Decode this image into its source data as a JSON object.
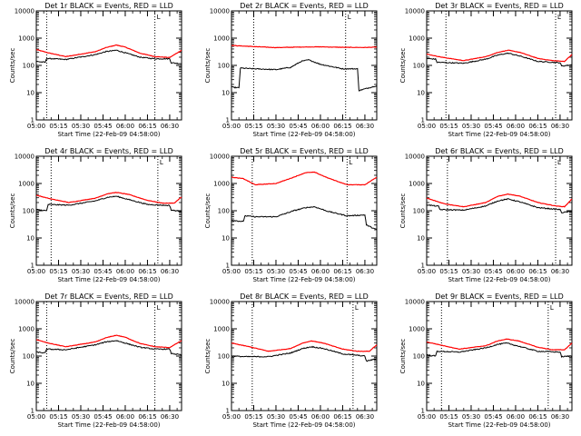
{
  "chart_data": [
    {
      "type": "line",
      "title": "Det 1r BLACK = Events, RED = LLD",
      "xlabel": "Start Time (22-Feb-09 04:58:00)",
      "ylabel": "Counts/sec",
      "yscale": "log",
      "ylim": [
        1,
        10000
      ],
      "xlim": [
        "05:00",
        "06:38"
      ],
      "x_ticks": [
        "05:00",
        "05:15",
        "05:30",
        "05:45",
        "06:00",
        "06:15",
        "06:30"
      ],
      "y_ticks": [
        "1",
        "10",
        "100",
        "1000",
        "10000"
      ],
      "vlines_dotted": [
        "05:07",
        "06:20"
      ],
      "marker": "L",
      "series": [
        {
          "color": "#ff0000",
          "x": [
            "05:00",
            "05:08",
            "05:20",
            "05:40",
            "05:47",
            "05:54",
            "06:00",
            "06:10",
            "06:20",
            "06:30",
            "06:38"
          ],
          "values": [
            380,
            290,
            210,
            320,
            450,
            560,
            470,
            280,
            210,
            195,
            360
          ]
        },
        {
          "color": "#000000",
          "x": [
            "05:00",
            "05:06",
            "05:07",
            "05:20",
            "05:40",
            "05:47",
            "05:54",
            "06:00",
            "06:10",
            "06:20",
            "06:30",
            "06:31",
            "06:38"
          ],
          "values": [
            140,
            130,
            180,
            165,
            250,
            320,
            360,
            290,
            200,
            175,
            175,
            125,
            115
          ]
        }
      ]
    },
    {
      "type": "line",
      "title": "Det 2r BLACK = Events, RED = LLD",
      "xlabel": "Start Time (22-Feb-09 04:58:00)",
      "ylabel": "Counts/sec",
      "yscale": "log",
      "ylim": [
        1,
        10000
      ],
      "xlim": [
        "05:00",
        "06:38"
      ],
      "x_ticks": [
        "05:00",
        "05:15",
        "05:30",
        "05:45",
        "06:00",
        "06:15",
        "06:30"
      ],
      "y_ticks": [
        "1",
        "10",
        "100",
        "1000",
        "10000"
      ],
      "vlines_dotted": [
        "05:15",
        "06:17"
      ],
      "marker": "L",
      "series": [
        {
          "color": "#ff0000",
          "x": [
            "05:00",
            "05:15",
            "05:30",
            "05:45",
            "06:00",
            "06:15",
            "06:30",
            "06:38"
          ],
          "values": [
            540,
            490,
            450,
            470,
            480,
            460,
            455,
            470
          ]
        },
        {
          "color": "#000000",
          "x": [
            "05:00",
            "05:05",
            "05:06",
            "05:15",
            "05:30",
            "05:40",
            "05:47",
            "05:52",
            "06:00",
            "06:15",
            "06:25",
            "06:26",
            "06:38"
          ],
          "values": [
            16,
            15,
            80,
            75,
            70,
            85,
            140,
            160,
            110,
            75,
            75,
            12,
            18
          ]
        }
      ]
    },
    {
      "type": "line",
      "title": "Det 3r BLACK = Events, RED = LLD",
      "xlabel": "Start Time (22-Feb-09 04:58:00)",
      "ylabel": "Counts/sec",
      "yscale": "log",
      "ylim": [
        1,
        10000
      ],
      "xlim": [
        "05:00",
        "06:38"
      ],
      "x_ticks": [
        "05:00",
        "05:15",
        "05:30",
        "05:45",
        "06:00",
        "06:15",
        "06:30"
      ],
      "y_ticks": [
        "1",
        "10",
        "100",
        "1000",
        "10000"
      ],
      "vlines_dotted": [
        "05:13",
        "06:27"
      ],
      "marker": "L",
      "series": [
        {
          "color": "#ff0000",
          "x": [
            "05:00",
            "05:10",
            "05:25",
            "05:40",
            "05:48",
            "05:55",
            "06:03",
            "06:15",
            "06:25",
            "06:33",
            "06:38"
          ],
          "values": [
            260,
            200,
            150,
            210,
            300,
            360,
            300,
            180,
            150,
            140,
            250
          ]
        },
        {
          "color": "#000000",
          "x": [
            "05:00",
            "05:06",
            "05:07",
            "05:25",
            "05:40",
            "05:48",
            "05:55",
            "06:03",
            "06:15",
            "06:30",
            "06:31",
            "06:38"
          ],
          "values": [
            180,
            170,
            130,
            120,
            170,
            240,
            280,
            220,
            140,
            125,
            95,
            105
          ]
        }
      ]
    },
    {
      "type": "line",
      "title": "Det 4r BLACK = Events, RED = LLD",
      "xlabel": "Start Time (22-Feb-09 04:58:00)",
      "ylabel": "Counts/sec",
      "yscale": "log",
      "ylim": [
        1,
        10000
      ],
      "xlim": [
        "05:00",
        "06:38"
      ],
      "x_ticks": [
        "05:00",
        "05:15",
        "05:30",
        "05:45",
        "06:00",
        "06:15",
        "06:30"
      ],
      "y_ticks": [
        "1",
        "10",
        "100",
        "1000",
        "10000"
      ],
      "vlines_dotted": [
        "05:10",
        "06:22"
      ],
      "marker": "L",
      "series": [
        {
          "color": "#ff0000",
          "x": [
            "05:00",
            "05:10",
            "05:22",
            "05:40",
            "05:48",
            "05:54",
            "06:02",
            "06:15",
            "06:25",
            "06:33",
            "06:38"
          ],
          "values": [
            370,
            270,
            200,
            290,
            420,
            470,
            400,
            240,
            190,
            190,
            320
          ]
        },
        {
          "color": "#000000",
          "x": [
            "05:00",
            "05:07",
            "05:08",
            "05:22",
            "05:40",
            "05:48",
            "05:54",
            "06:02",
            "06:15",
            "06:30",
            "06:31",
            "06:38"
          ],
          "values": [
            110,
            100,
            170,
            160,
            230,
            310,
            340,
            260,
            170,
            155,
            105,
            95
          ]
        }
      ]
    },
    {
      "type": "line",
      "title": "Det 5r BLACK = Events, RED = LLD",
      "xlabel": "Start Time (22-Feb-09 04:58:00)",
      "ylabel": "Counts/sec",
      "yscale": "log",
      "ylim": [
        1,
        10000
      ],
      "xlim": [
        "05:00",
        "06:38"
      ],
      "x_ticks": [
        "05:00",
        "05:15",
        "05:30",
        "05:45",
        "06:00",
        "06:15",
        "06:30"
      ],
      "y_ticks": [
        "1",
        "10",
        "100",
        "1000",
        "10000"
      ],
      "vlines_dotted": [
        "05:14",
        "06:18"
      ],
      "marker": "L",
      "series": [
        {
          "color": "#ff0000",
          "x": [
            "05:00",
            "05:08",
            "05:16",
            "05:30",
            "05:42",
            "05:50",
            "05:56",
            "06:05",
            "06:18",
            "06:30",
            "06:38"
          ],
          "values": [
            1700,
            1500,
            900,
            1000,
            1700,
            2500,
            2600,
            1600,
            900,
            900,
            1700
          ]
        },
        {
          "color": "#000000",
          "x": [
            "05:00",
            "05:08",
            "05:09",
            "05:16",
            "05:30",
            "05:42",
            "05:50",
            "05:56",
            "06:05",
            "06:18",
            "06:30",
            "06:31",
            "06:38"
          ],
          "values": [
            45,
            40,
            65,
            60,
            60,
            100,
            130,
            140,
            95,
            65,
            70,
            30,
            20
          ]
        }
      ]
    },
    {
      "type": "line",
      "title": "Det 6r BLACK = Events, RED = LLD",
      "xlabel": "Start Time (22-Feb-09 04:58:00)",
      "ylabel": "Counts/sec",
      "yscale": "log",
      "ylim": [
        1,
        10000
      ],
      "xlim": [
        "05:00",
        "06:38"
      ],
      "x_ticks": [
        "05:00",
        "05:15",
        "05:30",
        "05:45",
        "06:00",
        "06:15",
        "06:30"
      ],
      "y_ticks": [
        "1",
        "10",
        "100",
        "1000",
        "10000"
      ],
      "vlines_dotted": [
        "05:14",
        "06:27"
      ],
      "marker": "L",
      "series": [
        {
          "color": "#ff0000",
          "x": [
            "05:00",
            "05:12",
            "05:25",
            "05:40",
            "05:48",
            "05:55",
            "06:03",
            "06:15",
            "06:27",
            "06:33",
            "06:38"
          ],
          "values": [
            290,
            180,
            140,
            200,
            340,
            410,
            340,
            200,
            150,
            140,
            270
          ]
        },
        {
          "color": "#000000",
          "x": [
            "05:00",
            "05:08",
            "05:09",
            "05:25",
            "05:40",
            "05:48",
            "05:55",
            "06:03",
            "06:15",
            "06:30",
            "06:31",
            "06:38"
          ],
          "values": [
            165,
            145,
            110,
            105,
            150,
            230,
            270,
            210,
            130,
            110,
            85,
            95
          ]
        }
      ]
    },
    {
      "type": "line",
      "title": "Det 7r BLACK = Events, RED = LLD",
      "xlabel": "Start Time (22-Feb-09 04:58:00)",
      "ylabel": "Counts/sec",
      "yscale": "log",
      "ylim": [
        1,
        10000
      ],
      "xlim": [
        "05:00",
        "06:38"
      ],
      "x_ticks": [
        "05:00",
        "05:15",
        "05:30",
        "05:45",
        "06:00",
        "06:15",
        "06:30"
      ],
      "y_ticks": [
        "1",
        "10",
        "100",
        "1000",
        "10000"
      ],
      "vlines_dotted": [
        "05:07",
        "06:20"
      ],
      "marker": "L",
      "series": [
        {
          "color": "#ff0000",
          "x": [
            "05:00",
            "05:08",
            "05:20",
            "05:40",
            "05:47",
            "05:54",
            "06:00",
            "06:10",
            "06:20",
            "06:30",
            "06:38"
          ],
          "values": [
            400,
            300,
            220,
            330,
            470,
            580,
            490,
            290,
            220,
            205,
            370
          ]
        },
        {
          "color": "#000000",
          "x": [
            "05:00",
            "05:06",
            "05:07",
            "05:20",
            "05:40",
            "05:47",
            "05:54",
            "06:00",
            "06:10",
            "06:20",
            "06:30",
            "06:31",
            "06:38"
          ],
          "values": [
            140,
            130,
            180,
            170,
            260,
            330,
            370,
            300,
            210,
            180,
            180,
            125,
            110
          ]
        }
      ]
    },
    {
      "type": "line",
      "title": "Det 8r BLACK = Events, RED = LLD",
      "xlabel": "Start Time (22-Feb-09 04:58:00)",
      "ylabel": "Counts/sec",
      "yscale": "log",
      "ylim": [
        1,
        10000
      ],
      "xlim": [
        "05:00",
        "06:38"
      ],
      "x_ticks": [
        "05:00",
        "05:15",
        "05:30",
        "05:45",
        "06:00",
        "06:15",
        "06:30"
      ],
      "y_ticks": [
        "1",
        "10",
        "100",
        "1000",
        "10000"
      ],
      "vlines_dotted": [
        "05:14",
        "06:22"
      ],
      "marker": "L",
      "series": [
        {
          "color": "#ff0000",
          "x": [
            "05:00",
            "05:12",
            "05:25",
            "05:40",
            "05:48",
            "05:54",
            "06:02",
            "06:15",
            "06:25",
            "06:33",
            "06:38"
          ],
          "values": [
            300,
            220,
            150,
            190,
            300,
            360,
            300,
            180,
            150,
            150,
            260
          ]
        },
        {
          "color": "#000000",
          "x": [
            "05:00",
            "05:10",
            "05:25",
            "05:40",
            "05:48",
            "05:54",
            "06:02",
            "06:15",
            "06:30",
            "06:31",
            "06:38"
          ],
          "values": [
            100,
            95,
            95,
            130,
            190,
            220,
            190,
            120,
            100,
            65,
            80
          ]
        }
      ]
    },
    {
      "type": "line",
      "title": "Det 9r BLACK = Events, RED = LLD",
      "xlabel": "Start Time (22-Feb-09 04:58:00)",
      "ylabel": "Counts/sec",
      "yscale": "log",
      "ylim": [
        1,
        10000
      ],
      "xlim": [
        "05:00",
        "06:38"
      ],
      "x_ticks": [
        "05:00",
        "05:15",
        "05:30",
        "05:45",
        "06:00",
        "06:15",
        "06:30"
      ],
      "y_ticks": [
        "1",
        "10",
        "100",
        "1000",
        "10000"
      ],
      "vlines_dotted": [
        "05:10",
        "06:22"
      ],
      "marker": "L",
      "series": [
        {
          "color": "#ff0000",
          "x": [
            "05:00",
            "05:10",
            "05:22",
            "05:40",
            "05:48",
            "05:54",
            "06:02",
            "06:15",
            "06:25",
            "06:33",
            "06:38"
          ],
          "values": [
            330,
            250,
            180,
            240,
            360,
            420,
            360,
            210,
            170,
            170,
            300
          ]
        },
        {
          "color": "#000000",
          "x": [
            "05:00",
            "05:06",
            "05:07",
            "05:22",
            "05:40",
            "05:48",
            "05:54",
            "06:02",
            "06:15",
            "06:30",
            "06:31",
            "06:38"
          ],
          "values": [
            110,
            100,
            150,
            140,
            200,
            270,
            300,
            230,
            150,
            140,
            95,
            100
          ]
        }
      ]
    }
  ]
}
